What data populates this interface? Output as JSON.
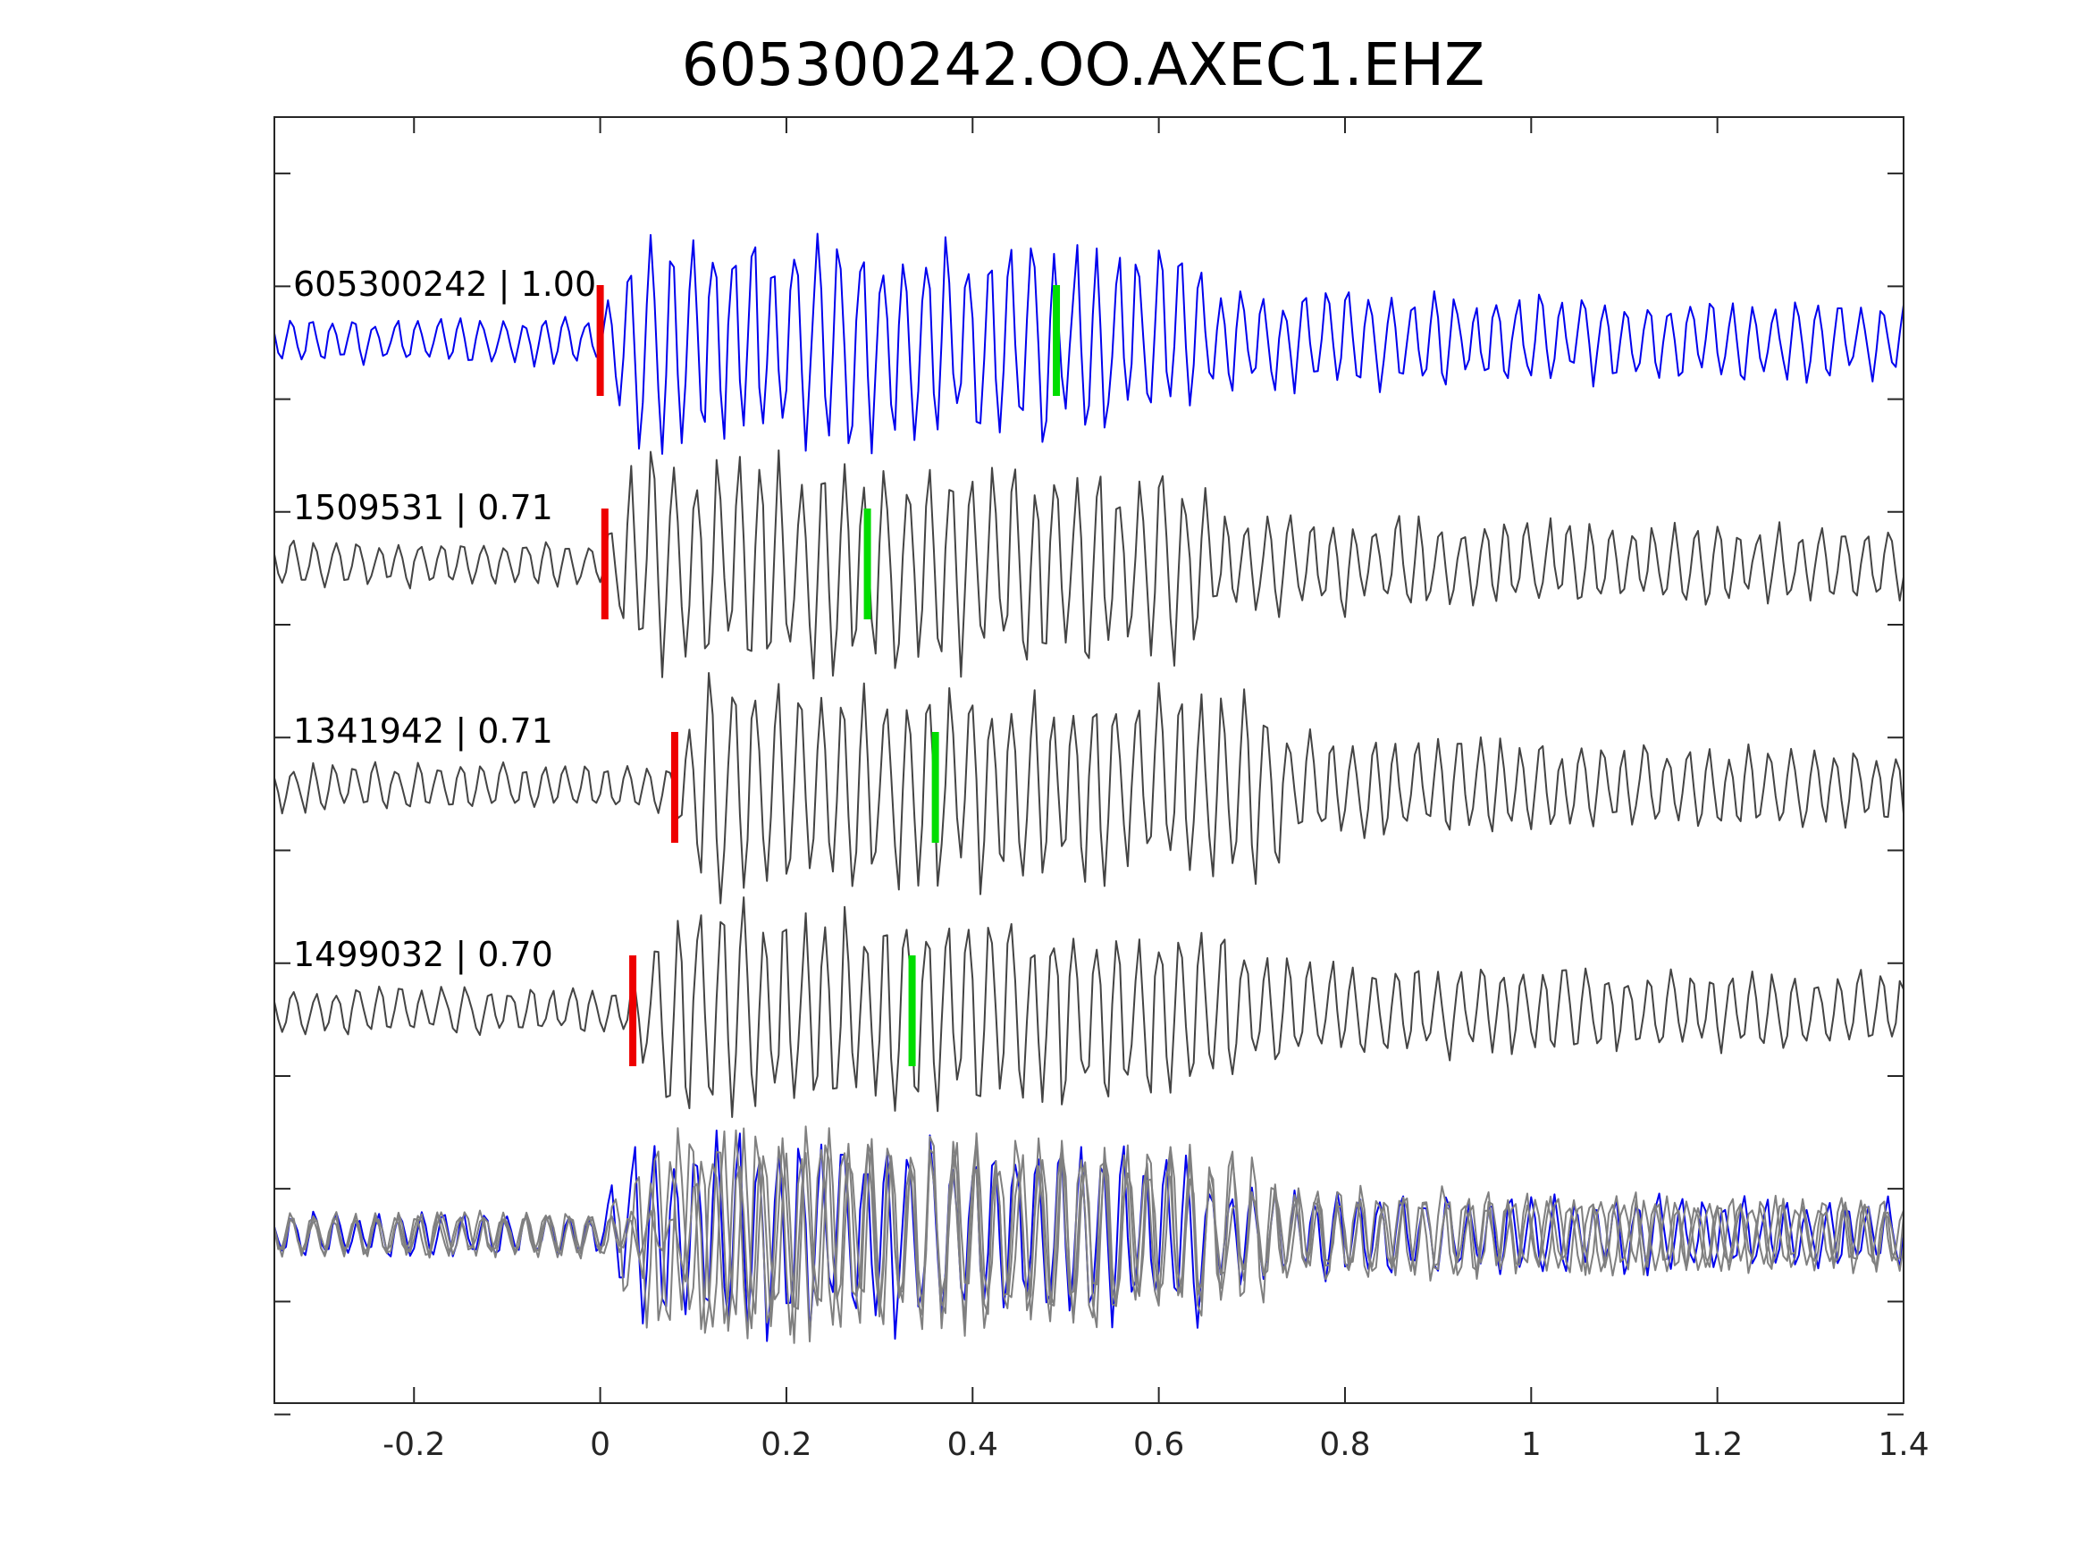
{
  "chart_data": {
    "type": "line",
    "title": "605300242.OO.AXEC1.EHZ",
    "xlabel": "",
    "ylabel": "",
    "xlim": [
      -0.35,
      1.4
    ],
    "x_ticks": [
      -0.2,
      0,
      0.2,
      0.4,
      0.6,
      0.8,
      1,
      1.2,
      1.4
    ],
    "x_tick_labels": [
      "-0.2",
      "0",
      "0.2",
      "0.4",
      "0.6",
      "0.8",
      "1",
      "1.2",
      "1.4"
    ],
    "y_tick_count": 12,
    "grid": false,
    "colors": {
      "template": "#0000ee",
      "match": "#444444",
      "overlay": "#808080",
      "p_pick": "#ee0000",
      "s_pick": "#00dd00",
      "axis": "#262626"
    },
    "traces": [
      {
        "id": "605300242",
        "cc": "1.00",
        "label": "605300242 | 1.00",
        "color": "template",
        "p_pick": 0.0,
        "s_pick": 0.49,
        "seed": 7
      },
      {
        "id": "1509531",
        "cc": "0.71",
        "label": "1509531 | 0.71",
        "color": "match",
        "p_pick": 0.005,
        "s_pick": 0.287,
        "seed": 19
      },
      {
        "id": "1341942",
        "cc": "0.71",
        "label": "1341942 | 0.71",
        "color": "match",
        "p_pick": 0.08,
        "s_pick": 0.36,
        "seed": 31
      },
      {
        "id": "1499032",
        "cc": "0.70",
        "label": "1499032 | 0.70",
        "color": "match",
        "p_pick": 0.035,
        "s_pick": 0.335,
        "seed": 43
      }
    ],
    "overlay": {
      "description": "stacked overlay of all traces",
      "seed": 59
    }
  }
}
